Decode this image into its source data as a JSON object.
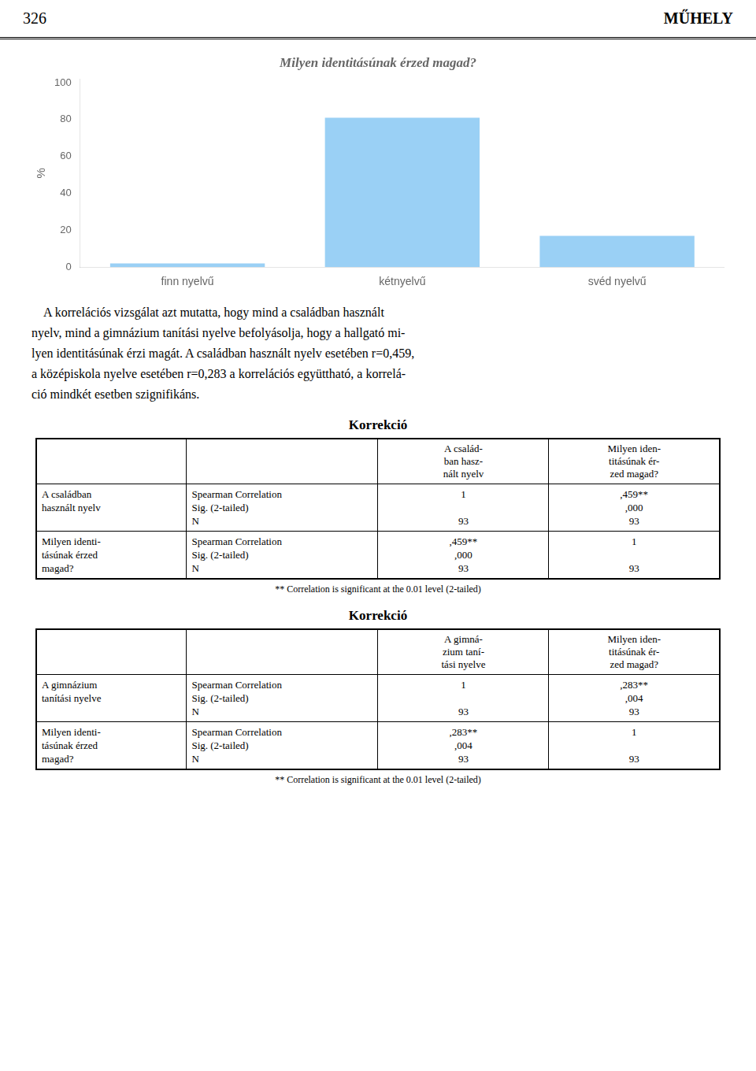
{
  "header": [
    "326",
    "MŰHELY"
  ],
  "chart_data": {
    "type": "bar",
    "title": "Milyen identitásúnak érzed magad?",
    "categories": [
      "finn nyelvű",
      "kétnyelvű",
      "svéd nyelvű"
    ],
    "values": [
      2,
      81,
      17
    ],
    "ylabel": "%",
    "ylim": [
      0,
      102
    ],
    "yticks": [
      0,
      20,
      40,
      60,
      80,
      100
    ],
    "grid": false,
    "legend": null
  },
  "paragraph": [
    "    A korrelációs vizsgálat azt mutatta, hogy mind a családban használt",
    "nyelv, mind a gimnázium tanítási nyelve befolyásolja, hogy a hallgató mi-",
    "lyen identitásúnak érzi magát. A családban használt nyelv esetében r=0,459,",
    "a középiskola nyelve esetében r=0,283 a korrelációs együttható, a korrelá-",
    "ció mindkét esetben szignifikáns."
  ],
  "tables": [
    {
      "title": "Korrekció",
      "col_headers": [
        "A család-\nban hasz-\nnált nyelv",
        "Milyen iden-\ntitásúnak ér-\nzed magad?"
      ],
      "rows": [
        {
          "row_header1": "A családban\nhasznált nyelv",
          "row_header2": "Spearman Correlation\nSig. (2-tailed)\nN",
          "col1_lines": [
            "1",
            null,
            "93"
          ],
          "col2_lines": [
            ",459**",
            ",000",
            "93"
          ]
        },
        {
          "row_header1": "Milyen identi-\ntásúnak érzed\nmagad?",
          "row_header2": "Spearman Correlation\nSig. (2-tailed)\nN",
          "col1_lines": [
            ",459**",
            ",000",
            "93"
          ],
          "col2_lines": [
            "1",
            null,
            "93"
          ]
        }
      ],
      "footnote": "** Correlation is significant at the 0.01 level (2-tailed)"
    },
    {
      "title": "Korrekció",
      "col_headers": [
        "A gimná-\nzium taní-\ntási nyelve",
        "Milyen iden-\ntitásúnak ér-\nzed magad?"
      ],
      "rows": [
        {
          "row_header1": "A gimnázium\ntanítási nyelve",
          "row_header2": "Spearman Correlation\nSig. (2-tailed)\nN",
          "col1_lines": [
            "1",
            null,
            "93"
          ],
          "col2_lines": [
            ",283**",
            ",004",
            "93"
          ]
        },
        {
          "row_header1": "Milyen identi-\ntásúnak érzed\nmagad?",
          "row_header2": "Spearman Correlation\nSig. (2-tailed)\nN",
          "col1_lines": [
            ",283**",
            ",004",
            "93"
          ],
          "col2_lines": [
            "1",
            null,
            "93"
          ]
        }
      ],
      "footnote": "** Correlation is significant at the 0.01 level (2-tailed)"
    }
  ]
}
